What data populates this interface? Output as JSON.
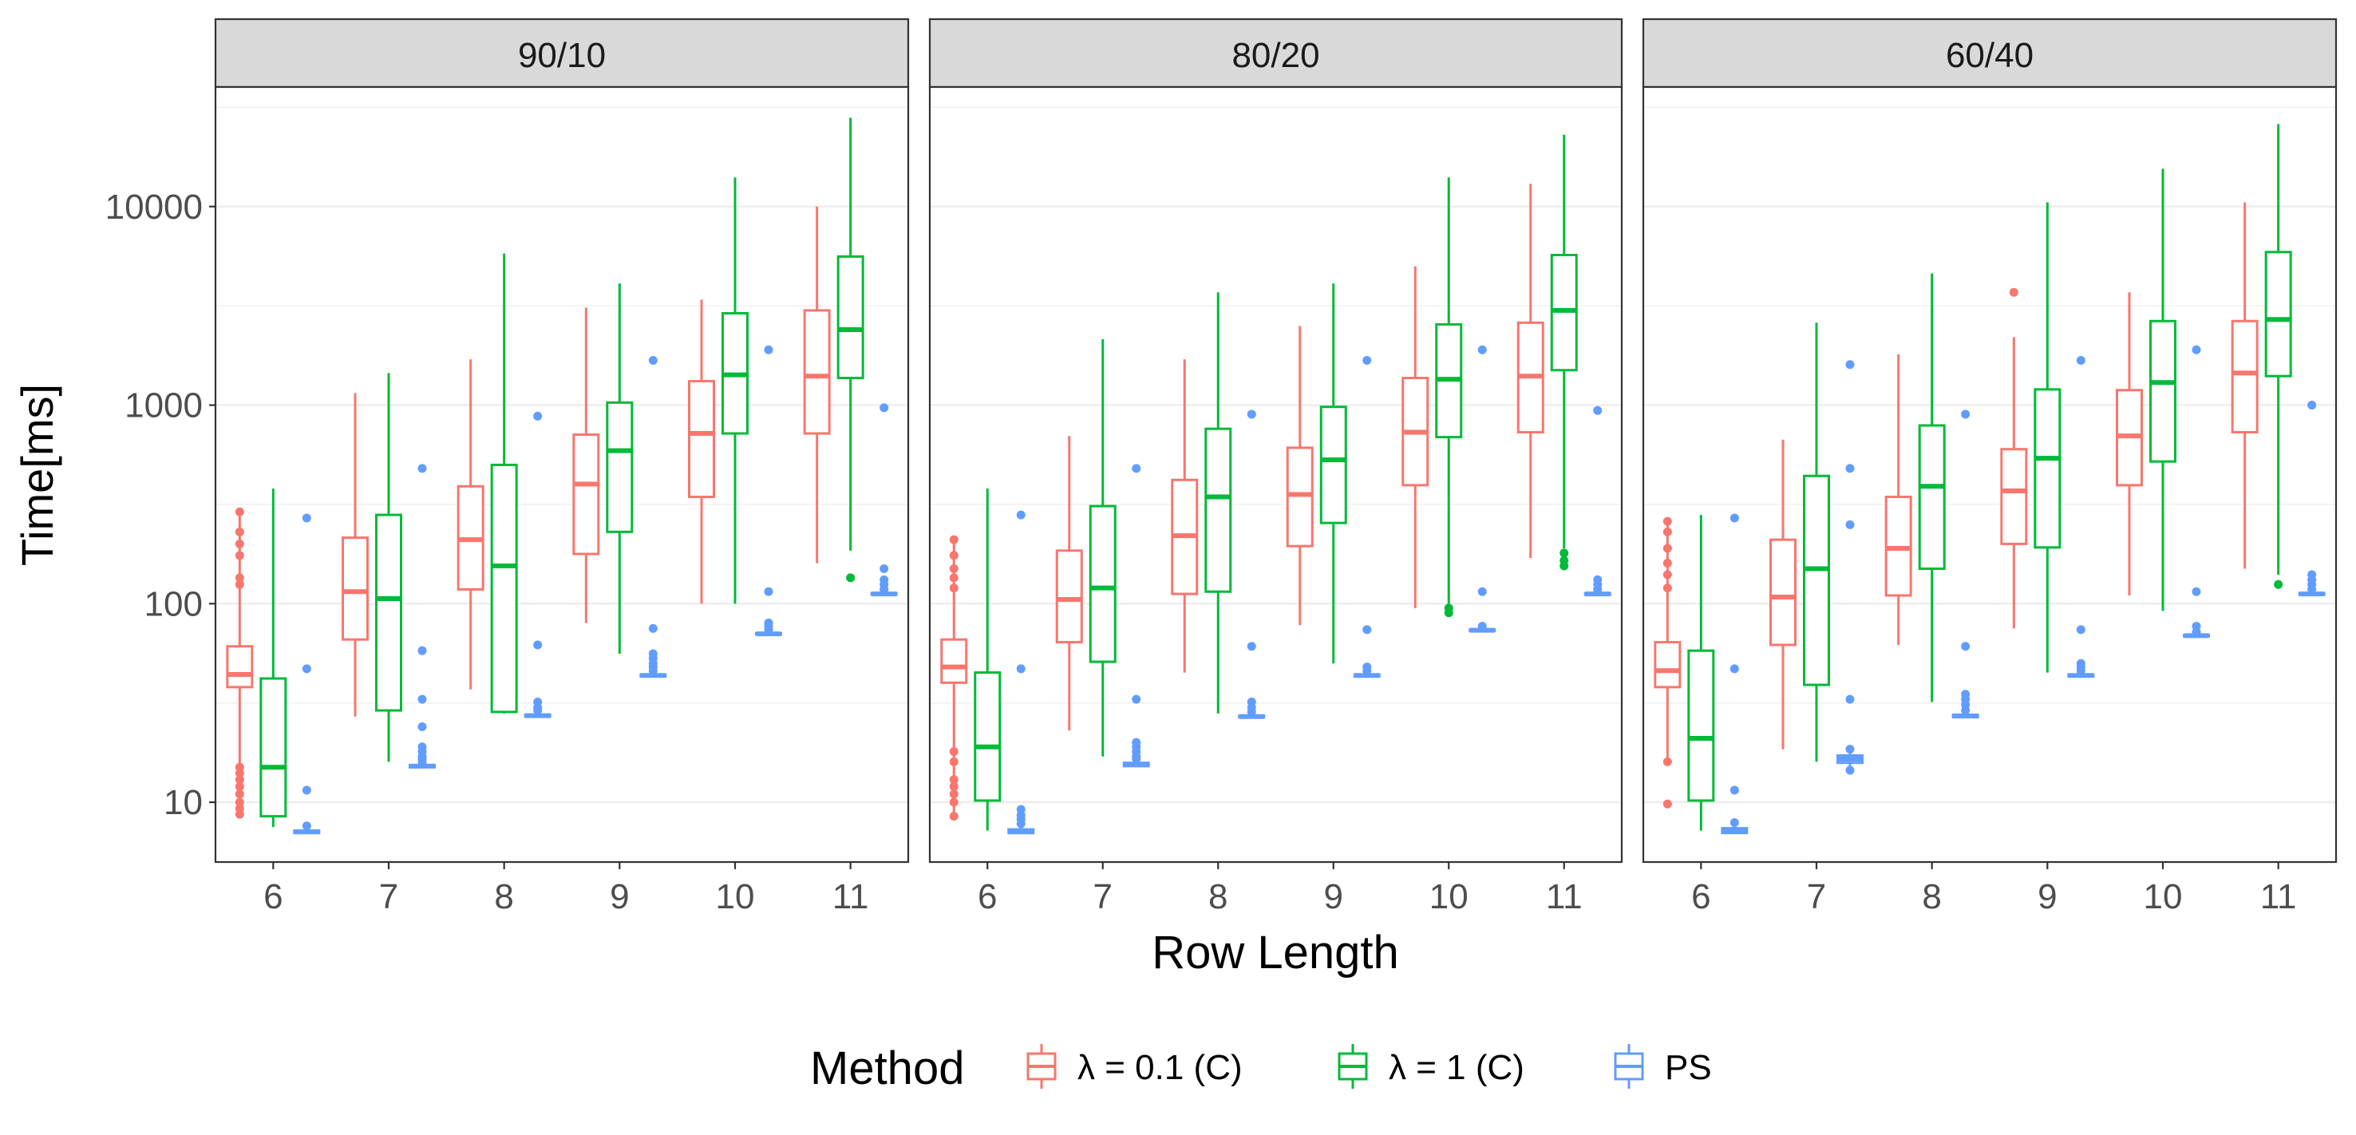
{
  "chart_data": {
    "type": "boxplot",
    "facet_by": "Split",
    "scale_y": "log10",
    "ylim": [
      5,
      40000
    ],
    "xlabel": "Row Length",
    "ylabel": "Time[ms]",
    "y_ticks": [
      10,
      100,
      1000,
      10000
    ],
    "y_tick_labels": [
      "10",
      "100",
      "1000",
      "10000"
    ],
    "categories": [
      "6",
      "7",
      "8",
      "9",
      "10",
      "11"
    ],
    "legend": {
      "title": "Method",
      "position": "bottom",
      "entries": [
        {
          "label": "λ = 0.1 (C)",
          "color": "#F8766D"
        },
        {
          "label": "λ = 1 (C)",
          "color": "#00BA38"
        },
        {
          "label": "PS",
          "color": "#619CFF"
        }
      ]
    },
    "facets": [
      {
        "label": "90/10",
        "series": [
          {
            "name": "λ = 0.1 (C)",
            "color": "#F8766D",
            "boxes": [
              {
                "x": "6",
                "low": 9,
                "q1": 38,
                "median": 44,
                "q3": 61,
                "high": 290,
                "outliers": [
                  8.7,
                  9.3,
                  10,
                  11,
                  12,
                  13,
                  14,
                  15,
                  125,
                  135,
                  175,
                  200,
                  230,
                  290
                ]
              },
              {
                "x": "7",
                "low": 27,
                "q1": 66,
                "median": 115,
                "q3": 215,
                "high": 1150,
                "outliers": []
              },
              {
                "x": "8",
                "low": 37,
                "q1": 118,
                "median": 210,
                "q3": 390,
                "high": 1700,
                "outliers": []
              },
              {
                "x": "9",
                "low": 80,
                "q1": 178,
                "median": 400,
                "q3": 710,
                "high": 3100,
                "outliers": []
              },
              {
                "x": "10",
                "low": 100,
                "q1": 345,
                "median": 720,
                "q3": 1320,
                "high": 3400,
                "outliers": []
              },
              {
                "x": "11",
                "low": 160,
                "q1": 720,
                "median": 1400,
                "q3": 3000,
                "high": 10000,
                "outliers": []
              }
            ]
          },
          {
            "name": "λ = 1 (C)",
            "color": "#00BA38",
            "boxes": [
              {
                "x": "6",
                "low": 7.5,
                "q1": 8.5,
                "median": 15,
                "q3": 42,
                "high": 380,
                "outliers": []
              },
              {
                "x": "7",
                "low": 16,
                "q1": 29,
                "median": 106,
                "q3": 280,
                "high": 1450,
                "outliers": []
              },
              {
                "x": "8",
                "low": 28,
                "q1": 28.5,
                "median": 155,
                "q3": 500,
                "high": 5800,
                "outliers": []
              },
              {
                "x": "9",
                "low": 56,
                "q1": 230,
                "median": 590,
                "q3": 1030,
                "high": 4100,
                "outliers": []
              },
              {
                "x": "10",
                "low": 100,
                "q1": 720,
                "median": 1420,
                "q3": 2900,
                "high": 14000,
                "outliers": []
              },
              {
                "x": "11",
                "low": 185,
                "q1": 1370,
                "median": 2400,
                "q3": 5600,
                "high": 28000,
                "outliers": [
                  135
                ]
              }
            ]
          },
          {
            "name": "PS",
            "color": "#619CFF",
            "boxes": [
              {
                "x": "6",
                "low": 7,
                "q1": 7,
                "median": 7.1,
                "q3": 7.2,
                "high": 7.3,
                "outliers": [
                  7.6,
                  11.5,
                  47,
                  270
                ]
              },
              {
                "x": "7",
                "low": 14.8,
                "q1": 15,
                "median": 15.2,
                "q3": 15.4,
                "high": 15.6,
                "outliers": [
                  16,
                  16.5,
                  17,
                  18,
                  19,
                  24,
                  33,
                  58,
                  480
                ]
              },
              {
                "x": "8",
                "low": 26.8,
                "q1": 27,
                "median": 27.3,
                "q3": 27.6,
                "high": 28,
                "outliers": [
                  29,
                  30,
                  32,
                  62,
                  880
                ]
              },
              {
                "x": "9",
                "low": 42.5,
                "q1": 43,
                "median": 43.5,
                "q3": 44,
                "high": 44.5,
                "outliers": [
                  46,
                  48,
                  50,
                  53,
                  56,
                  75,
                  1680
                ]
              },
              {
                "x": "10",
                "low": 69,
                "q1": 70,
                "median": 70.5,
                "q3": 71,
                "high": 72,
                "outliers": [
                  74,
                  77,
                  80,
                  115,
                  1900
                ]
              },
              {
                "x": "11",
                "low": 110,
                "q1": 111,
                "median": 112,
                "q3": 113,
                "high": 114,
                "outliers": [
                  118,
                  125,
                  132,
                  150,
                  970
                ]
              }
            ]
          }
        ]
      },
      {
        "label": "80/20",
        "series": [
          {
            "name": "λ = 0.1 (C)",
            "color": "#F8766D",
            "boxes": [
              {
                "x": "6",
                "low": 8.5,
                "q1": 40,
                "median": 48,
                "q3": 66,
                "high": 210,
                "outliers": [
                  8.5,
                  10,
                  11,
                  12,
                  13,
                  16,
                  18,
                  120,
                  135,
                  150,
                  175,
                  210
                ]
              },
              {
                "x": "7",
                "low": 23,
                "q1": 64,
                "median": 105,
                "q3": 185,
                "high": 700,
                "outliers": []
              },
              {
                "x": "8",
                "low": 45,
                "q1": 112,
                "median": 220,
                "q3": 420,
                "high": 1700,
                "outliers": []
              },
              {
                "x": "9",
                "low": 78,
                "q1": 195,
                "median": 355,
                "q3": 610,
                "high": 2500,
                "outliers": []
              },
              {
                "x": "10",
                "low": 95,
                "q1": 395,
                "median": 730,
                "q3": 1370,
                "high": 5000,
                "outliers": []
              },
              {
                "x": "11",
                "low": 170,
                "q1": 730,
                "median": 1400,
                "q3": 2600,
                "high": 13000,
                "outliers": []
              }
            ]
          },
          {
            "name": "λ = 1 (C)",
            "color": "#00BA38",
            "boxes": [
              {
                "x": "6",
                "low": 7.2,
                "q1": 10.2,
                "median": 19,
                "q3": 45,
                "high": 380,
                "outliers": []
              },
              {
                "x": "7",
                "low": 17,
                "q1": 51,
                "median": 120,
                "q3": 310,
                "high": 2150,
                "outliers": []
              },
              {
                "x": "8",
                "low": 28,
                "q1": 115,
                "median": 345,
                "q3": 760,
                "high": 3700,
                "outliers": []
              },
              {
                "x": "9",
                "low": 50,
                "q1": 255,
                "median": 530,
                "q3": 980,
                "high": 4100,
                "outliers": []
              },
              {
                "x": "10",
                "low": 100,
                "q1": 690,
                "median": 1350,
                "q3": 2550,
                "high": 14000,
                "outliers": [
                  90,
                  95
                ]
              },
              {
                "x": "11",
                "low": 190,
                "q1": 1500,
                "median": 3000,
                "q3": 5700,
                "high": 23000,
                "outliers": [
                  155,
                  165,
                  180
                ]
              }
            ]
          },
          {
            "name": "PS",
            "color": "#619CFF",
            "boxes": [
              {
                "x": "6",
                "low": 7,
                "q1": 7,
                "median": 7.1,
                "q3": 7.3,
                "high": 7.5,
                "outliers": [
                  7.8,
                  8.2,
                  8.6,
                  9.2,
                  47,
                  280
                ]
              },
              {
                "x": "7",
                "low": 15,
                "q1": 15.2,
                "median": 15.5,
                "q3": 15.8,
                "high": 16,
                "outliers": [
                  16.5,
                  17,
                  18,
                  19,
                  20,
                  33,
                  480
                ]
              },
              {
                "x": "8",
                "low": 26.5,
                "q1": 26.8,
                "median": 27,
                "q3": 27.3,
                "high": 27.6,
                "outliers": [
                  28.5,
                  30,
                  32,
                  61,
                  900
                ]
              },
              {
                "x": "9",
                "low": 42.5,
                "q1": 43,
                "median": 43.5,
                "q3": 44,
                "high": 44.5,
                "outliers": [
                  46,
                  48,
                  74,
                  1680
                ]
              },
              {
                "x": "10",
                "low": 72,
                "q1": 73,
                "median": 73.5,
                "q3": 74,
                "high": 75,
                "outliers": [
                  77,
                  115,
                  1900
                ]
              },
              {
                "x": "11",
                "low": 110,
                "q1": 111,
                "median": 112,
                "q3": 113,
                "high": 114,
                "outliers": [
                  118,
                  125,
                  132,
                  940
                ]
              }
            ]
          }
        ]
      },
      {
        "label": "60/40",
        "series": [
          {
            "name": "λ = 0.1 (C)",
            "color": "#F8766D",
            "boxes": [
              {
                "x": "6",
                "low": 16,
                "q1": 38,
                "median": 46,
                "q3": 64,
                "high": 260,
                "outliers": [
                  9.8,
                  16,
                  120,
                  140,
                  160,
                  190,
                  230,
                  260
                ]
              },
              {
                "x": "7",
                "low": 18.5,
                "q1": 62,
                "median": 108,
                "q3": 210,
                "high": 670,
                "outliers": []
              },
              {
                "x": "8",
                "low": 62,
                "q1": 110,
                "median": 190,
                "q3": 345,
                "high": 1800,
                "outliers": []
              },
              {
                "x": "9",
                "low": 75,
                "q1": 200,
                "median": 370,
                "q3": 600,
                "high": 2200,
                "outliers": [
                  3700
                ]
              },
              {
                "x": "10",
                "low": 110,
                "q1": 395,
                "median": 700,
                "q3": 1190,
                "high": 3700,
                "outliers": []
              },
              {
                "x": "11",
                "low": 150,
                "q1": 730,
                "median": 1450,
                "q3": 2650,
                "high": 10500,
                "outliers": []
              }
            ]
          },
          {
            "name": "λ = 1 (C)",
            "color": "#00BA38",
            "boxes": [
              {
                "x": "6",
                "low": 7.2,
                "q1": 10.2,
                "median": 21,
                "q3": 58,
                "high": 280,
                "outliers": []
              },
              {
                "x": "7",
                "low": 16,
                "q1": 39,
                "median": 150,
                "q3": 440,
                "high": 2600,
                "outliers": []
              },
              {
                "x": "8",
                "low": 32,
                "q1": 150,
                "median": 390,
                "q3": 790,
                "high": 4600,
                "outliers": []
              },
              {
                "x": "9",
                "low": 45,
                "q1": 192,
                "median": 540,
                "q3": 1200,
                "high": 10500,
                "outliers": []
              },
              {
                "x": "10",
                "low": 92,
                "q1": 520,
                "median": 1300,
                "q3": 2650,
                "high": 15500,
                "outliers": []
              },
              {
                "x": "11",
                "low": 140,
                "q1": 1400,
                "median": 2700,
                "q3": 5900,
                "high": 26000,
                "outliers": [
                  125
                ]
              }
            ]
          },
          {
            "name": "PS",
            "color": "#619CFF",
            "boxes": [
              {
                "x": "6",
                "low": 7,
                "q1": 7,
                "median": 7.2,
                "q3": 7.4,
                "high": 7.6,
                "outliers": [
                  7.9,
                  11.5,
                  47,
                  270
                ]
              },
              {
                "x": "7",
                "low": 15,
                "q1": 15.8,
                "median": 16.5,
                "q3": 17.2,
                "high": 17.8,
                "outliers": [
                  14.5,
                  18.5,
                  33,
                  250,
                  480,
                  1600
                ]
              },
              {
                "x": "8",
                "low": 26.5,
                "q1": 26.8,
                "median": 27.2,
                "q3": 27.6,
                "high": 28,
                "outliers": [
                  29,
                  31,
                  33,
                  35,
                  61,
                  900
                ]
              },
              {
                "x": "9",
                "low": 42.5,
                "q1": 43,
                "median": 43.5,
                "q3": 44,
                "high": 44.5,
                "outliers": [
                  46,
                  48,
                  50,
                  74,
                  1680
                ]
              },
              {
                "x": "10",
                "low": 68,
                "q1": 68.5,
                "median": 69,
                "q3": 69.5,
                "high": 70,
                "outliers": [
                  72,
                  77,
                  115,
                  1900
                ]
              },
              {
                "x": "11",
                "low": 110,
                "q1": 111,
                "median": 112,
                "q3": 113,
                "high": 114,
                "outliers": [
                  118,
                  125,
                  132,
                  140,
                  1000
                ]
              }
            ]
          }
        ]
      }
    ]
  }
}
